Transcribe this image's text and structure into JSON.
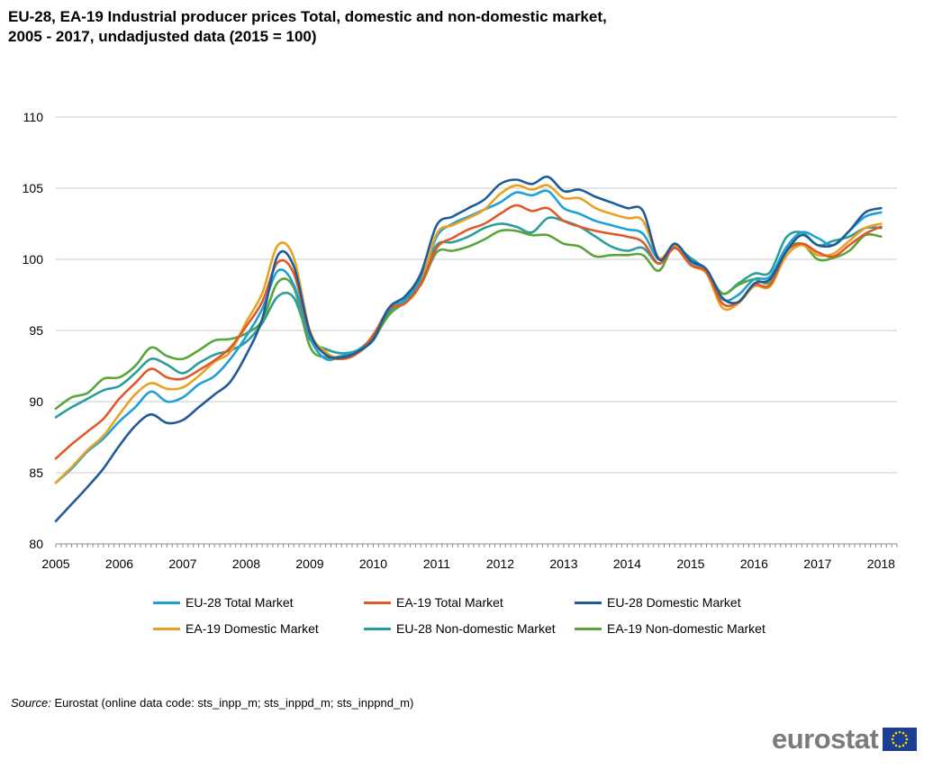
{
  "header": {
    "title_line1": "EU-28, EA-19 Industrial producer prices Total, domestic and non-domestic market,",
    "title_line2": "2005 - 2017, undadjusted data (2015 = 100)"
  },
  "source": {
    "label": "Source:",
    "text": "Eurostat (online data code: sts_inpp_m; sts_inppd_m; sts_inppnd_m)"
  },
  "logo": {
    "text": "eurostat",
    "flag": "eu-flag-icon"
  },
  "chart_data": {
    "type": "line",
    "title": "EU-28, EA-19 Industrial producer prices Total, domestic and non-domestic market, 2005 - 2017, undadjusted data (2015 = 100)",
    "x_start": 2005,
    "x_step": 0.25,
    "xlim": [
      2005,
      2018.25
    ],
    "ylim": [
      80,
      110
    ],
    "y_ticks": [
      80,
      85,
      90,
      95,
      100,
      105,
      110
    ],
    "x_ticks": [
      2005,
      2006,
      2007,
      2008,
      2009,
      2010,
      2011,
      2012,
      2013,
      2014,
      2015,
      2016,
      2017,
      2018
    ],
    "grid": "horizontal",
    "legend_position": "bottom",
    "series": [
      {
        "name": "EU-28 Total Market",
        "color": "#1da1d6",
        "values": [
          84.3,
          85.3,
          86.5,
          87.4,
          88.6,
          89.6,
          90.7,
          90.0,
          90.3,
          91.2,
          91.8,
          93.0,
          94.6,
          96.5,
          99.2,
          98.2,
          94.5,
          93.0,
          93.2,
          93.6,
          94.6,
          96.6,
          97.1,
          98.5,
          101.6,
          102.5,
          103.0,
          103.5,
          104.0,
          104.7,
          104.5,
          104.8,
          103.6,
          103.2,
          102.7,
          102.4,
          102.1,
          101.8,
          100.0,
          100.9,
          99.8,
          99.2,
          97.2,
          97.5,
          98.6,
          98.8,
          100.8,
          101.9,
          101.5,
          101.0,
          102.0,
          103.0,
          103.3
        ]
      },
      {
        "name": "EA-19 Total Market",
        "color": "#e0592a",
        "values": [
          86.0,
          87.0,
          87.9,
          88.8,
          90.2,
          91.3,
          92.3,
          91.7,
          91.6,
          92.2,
          92.9,
          93.8,
          95.3,
          97.0,
          99.8,
          99.0,
          94.8,
          93.3,
          93.0,
          93.4,
          94.7,
          96.5,
          96.9,
          98.3,
          100.8,
          101.5,
          102.1,
          102.5,
          103.2,
          103.8,
          103.4,
          103.6,
          102.7,
          102.3,
          102.0,
          101.8,
          101.6,
          101.2,
          99.7,
          100.8,
          99.6,
          99.1,
          96.9,
          97.0,
          98.2,
          98.2,
          100.5,
          101.1,
          100.5,
          100.2,
          101.0,
          101.8,
          102.3
        ]
      },
      {
        "name": "EU-28 Domestic Market",
        "color": "#1f5b96",
        "values": [
          81.6,
          82.8,
          84.0,
          85.3,
          86.9,
          88.3,
          89.1,
          88.5,
          88.7,
          89.6,
          90.5,
          91.4,
          93.3,
          95.8,
          100.3,
          99.5,
          94.9,
          93.3,
          93.1,
          93.5,
          94.4,
          96.6,
          97.4,
          99.0,
          102.4,
          103.0,
          103.6,
          104.2,
          105.3,
          105.6,
          105.3,
          105.8,
          104.8,
          104.9,
          104.4,
          104.0,
          103.6,
          103.4,
          100.0,
          101.1,
          99.9,
          99.3,
          97.3,
          97.0,
          98.3,
          98.6,
          100.5,
          101.7,
          101.0,
          101.0,
          102.0,
          103.3,
          103.6
        ]
      },
      {
        "name": "EA-19 Domestic Market",
        "color": "#e8a223",
        "values": [
          84.3,
          85.4,
          86.6,
          87.6,
          89.1,
          90.5,
          91.3,
          90.9,
          91.0,
          91.8,
          92.8,
          93.5,
          95.6,
          97.6,
          101.0,
          100.1,
          95.0,
          93.5,
          93.0,
          93.4,
          94.6,
          96.5,
          96.9,
          98.3,
          101.8,
          102.4,
          102.9,
          103.5,
          104.6,
          105.2,
          104.9,
          105.2,
          104.3,
          104.3,
          103.6,
          103.2,
          102.9,
          102.7,
          100.1,
          101.0,
          99.6,
          99.0,
          96.6,
          96.9,
          98.1,
          98.1,
          100.2,
          101.0,
          100.3,
          100.4,
          101.3,
          102.2,
          102.5
        ]
      },
      {
        "name": "EU-28 Non-domestic Market",
        "color": "#2a9e9a",
        "values": [
          88.9,
          89.6,
          90.2,
          90.8,
          91.1,
          92.0,
          93.0,
          92.6,
          92.0,
          92.7,
          93.3,
          93.6,
          94.2,
          95.5,
          97.4,
          97.3,
          94.4,
          93.7,
          93.4,
          93.6,
          94.3,
          96.3,
          97.2,
          98.7,
          101.0,
          101.2,
          101.6,
          102.2,
          102.5,
          102.3,
          101.9,
          102.9,
          102.7,
          102.3,
          101.6,
          100.9,
          100.6,
          100.8,
          99.7,
          100.8,
          100.1,
          99.2,
          97.6,
          98.3,
          99.0,
          99.1,
          101.5,
          101.9,
          101.0,
          101.3,
          101.6,
          102.2,
          102.2
        ]
      },
      {
        "name": "EA-19 Non-domestic Market",
        "color": "#5aa53a",
        "values": [
          89.5,
          90.3,
          90.6,
          91.6,
          91.7,
          92.5,
          93.8,
          93.2,
          93.0,
          93.6,
          94.3,
          94.4,
          94.8,
          95.7,
          98.4,
          98.0,
          93.9,
          93.1,
          93.2,
          93.4,
          94.4,
          96.1,
          97.0,
          98.2,
          100.5,
          100.6,
          100.9,
          101.4,
          102.0,
          102.0,
          101.7,
          101.7,
          101.1,
          100.9,
          100.2,
          100.3,
          100.3,
          100.3,
          99.2,
          101.0,
          99.9,
          99.2,
          97.6,
          98.2,
          98.6,
          98.4,
          100.6,
          101.1,
          100.0,
          100.1,
          100.6,
          101.7,
          101.6
        ]
      }
    ]
  }
}
